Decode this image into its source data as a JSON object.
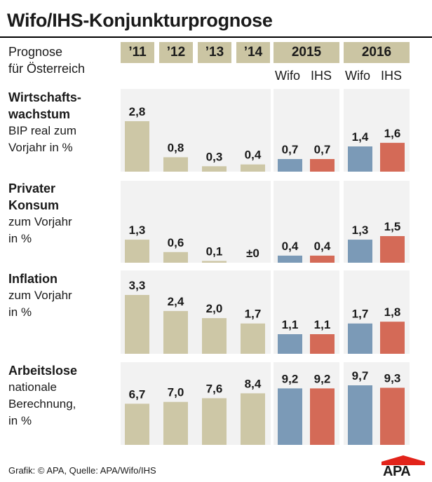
{
  "title": "Wifo/IHS-Konjunkturprognose",
  "header": {
    "prognose_line1": "Prognose",
    "prognose_line2": "für Österreich",
    "years": [
      "’11",
      "’12",
      "’13",
      "’14",
      "2015",
      "2016"
    ],
    "sub_wifo": "Wifo",
    "sub_ihs": "IHS"
  },
  "colors": {
    "past": "#cdc7a6",
    "wifo": "#7b9ab7",
    "ihs": "#d46a57",
    "panel": "#f2f2f2",
    "header": "#cbc5a3"
  },
  "chart_data": {
    "type": "bar",
    "categories": [
      "’11",
      "’12",
      "’13",
      "’14",
      "2015 Wifo",
      "2015 IHS",
      "2016 Wifo",
      "2016 IHS"
    ],
    "panels": [
      {
        "name": "Wirtschaftswachstum",
        "label_bold": [
          "Wirtschafts-",
          "wachstum"
        ],
        "label_normal": [
          "BIP real zum",
          "Vorjahr in %"
        ],
        "values": [
          2.8,
          0.8,
          0.3,
          0.4,
          0.7,
          0.7,
          1.4,
          1.6
        ],
        "labels": [
          "2,8",
          "0,8",
          "0,3",
          "0,4",
          "0,7",
          "0,7",
          "1,4",
          "1,6"
        ]
      },
      {
        "name": "Privater Konsum",
        "label_bold": [
          "Privater",
          "Konsum"
        ],
        "label_normal": [
          "zum Vorjahr",
          "in %"
        ],
        "values": [
          1.3,
          0.6,
          0.1,
          0.0,
          0.4,
          0.4,
          1.3,
          1.5
        ],
        "labels": [
          "1,3",
          "0,6",
          "0,1",
          "±0",
          "0,4",
          "0,4",
          "1,3",
          "1,5"
        ]
      },
      {
        "name": "Inflation",
        "label_bold": [
          "Inflation"
        ],
        "label_normal": [
          "zum Vorjahr",
          "in %"
        ],
        "values": [
          3.3,
          2.4,
          2.0,
          1.7,
          1.1,
          1.1,
          1.7,
          1.8
        ],
        "labels": [
          "3,3",
          "2,4",
          "2,0",
          "1,7",
          "1,1",
          "1,1",
          "1,7",
          "1,8"
        ]
      },
      {
        "name": "Arbeitslose",
        "label_bold": [
          "Arbeitslose"
        ],
        "label_normal": [
          "nationale",
          "Berechnung,",
          "in %"
        ],
        "values": [
          6.7,
          7.0,
          7.6,
          8.4,
          9.2,
          9.2,
          9.7,
          9.3
        ],
        "labels": [
          "6,7",
          "7,0",
          "7,6",
          "8,4",
          "9,2",
          "9,2",
          "9,7",
          "9,3"
        ]
      }
    ]
  },
  "footer": {
    "source": "Grafik: © APA, Quelle: APA/Wifo/IHS",
    "logo": "APA"
  }
}
